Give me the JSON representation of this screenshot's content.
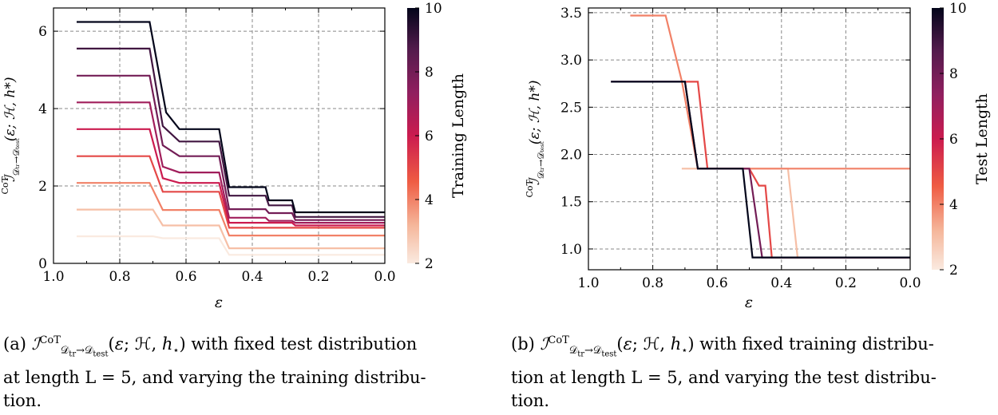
{
  "chart_data": [
    {
      "type": "line",
      "panel": "a",
      "xlabel": "ε",
      "ylabel": "I^CoT_{D_tr→D_test}(ε; H, h*)",
      "xlim": [
        1.0,
        0.0
      ],
      "ylim": [
        0,
        6.6
      ],
      "xticks": [
        "1.0",
        "0.8",
        "0.6",
        "0.4",
        "0.2",
        "0.0"
      ],
      "yticks": [
        "0",
        "2",
        "4",
        "6"
      ],
      "grid": true,
      "colorbar": {
        "label": "Training Length",
        "ticks": [
          "2",
          "4",
          "6",
          "8",
          "10"
        ],
        "range": [
          2,
          10
        ]
      },
      "series": [
        {
          "length": 2,
          "x": [
            0.93,
            0.7,
            0.67,
            0.5,
            0.47,
            0.0
          ],
          "y": [
            0.7,
            0.7,
            0.65,
            0.65,
            0.22,
            0.22
          ]
        },
        {
          "length": 3,
          "x": [
            0.93,
            0.7,
            0.67,
            0.5,
            0.47,
            0.0
          ],
          "y": [
            1.39,
            1.39,
            0.98,
            0.98,
            0.39,
            0.39
          ]
        },
        {
          "length": 4,
          "x": [
            0.93,
            0.71,
            0.67,
            0.6,
            0.5,
            0.47,
            0.28,
            0.27,
            0.0
          ],
          "y": [
            2.08,
            2.08,
            1.38,
            1.38,
            1.38,
            0.72,
            0.72,
            0.72,
            0.72
          ]
        },
        {
          "length": 5,
          "x": [
            0.93,
            0.71,
            0.67,
            0.5,
            0.47,
            0.28,
            0.27,
            0.0
          ],
          "y": [
            2.77,
            2.77,
            1.85,
            1.85,
            0.92,
            0.92,
            0.92,
            0.92
          ]
        },
        {
          "length": 6,
          "x": [
            0.93,
            0.71,
            0.67,
            0.62,
            0.5,
            0.47,
            0.28,
            0.27,
            0.0
          ],
          "y": [
            3.47,
            3.47,
            2.2,
            2.08,
            2.08,
            1.05,
            1.05,
            0.98,
            0.98
          ]
        },
        {
          "length": 7,
          "x": [
            0.93,
            0.71,
            0.67,
            0.62,
            0.5,
            0.47,
            0.36,
            0.35,
            0.28,
            0.27,
            0.0
          ],
          "y": [
            4.16,
            4.16,
            2.5,
            2.35,
            2.35,
            1.18,
            1.18,
            1.1,
            1.1,
            1.05,
            1.05
          ]
        },
        {
          "length": 8,
          "x": [
            0.93,
            0.71,
            0.67,
            0.62,
            0.5,
            0.47,
            0.36,
            0.35,
            0.28,
            0.27,
            0.0
          ],
          "y": [
            4.85,
            4.85,
            3.05,
            2.77,
            2.77,
            1.4,
            1.4,
            1.3,
            1.3,
            1.12,
            1.12
          ]
        },
        {
          "length": 9,
          "x": [
            0.93,
            0.71,
            0.67,
            0.62,
            0.5,
            0.47,
            0.36,
            0.35,
            0.28,
            0.27,
            0.0
          ],
          "y": [
            5.55,
            5.55,
            3.55,
            3.15,
            3.15,
            1.75,
            1.75,
            1.5,
            1.5,
            1.2,
            1.2
          ]
        },
        {
          "length": 10,
          "x": [
            0.93,
            0.71,
            0.66,
            0.62,
            0.5,
            0.47,
            0.36,
            0.35,
            0.28,
            0.27,
            0.0
          ],
          "y": [
            6.24,
            6.24,
            3.9,
            3.47,
            3.47,
            1.97,
            1.97,
            1.63,
            1.63,
            1.32,
            1.32
          ]
        }
      ]
    },
    {
      "type": "line",
      "panel": "b",
      "xlabel": "ε",
      "ylabel": "I^CoT_{D_tr→D_test}(ε; H, h*)",
      "xlim": [
        1.0,
        0.0
      ],
      "ylim": [
        0.78,
        3.55
      ],
      "xticks": [
        "1.0",
        "0.8",
        "0.6",
        "0.4",
        "0.2",
        "0.0"
      ],
      "yticks": [
        "1.0",
        "1.5",
        "2.0",
        "2.5",
        "3.0",
        "3.5"
      ],
      "grid": true,
      "colorbar": {
        "label": "Test Length",
        "ticks": [
          "2",
          "4",
          "6",
          "8",
          "10"
        ],
        "range": [
          2,
          10
        ]
      },
      "series": [
        {
          "length": 3,
          "x": [
            0.71,
            0.38,
            0.35,
            0.0
          ],
          "y": [
            1.85,
            1.85,
            0.91,
            0.91
          ]
        },
        {
          "length": 4,
          "x": [
            0.87,
            0.76,
            0.71,
            0.66,
            0.0
          ],
          "y": [
            3.47,
            3.47,
            2.78,
            1.85,
            1.85
          ]
        },
        {
          "length": 5,
          "x": [
            0.71,
            0.66,
            0.63,
            0.5,
            0.47,
            0.45,
            0.43,
            0.0
          ],
          "y": [
            2.77,
            2.77,
            1.85,
            1.85,
            1.67,
            1.67,
            0.91,
            0.91
          ]
        },
        {
          "length": 8,
          "x": [
            0.93,
            0.7,
            0.66,
            0.5,
            0.46,
            0.0
          ],
          "y": [
            2.77,
            2.77,
            1.85,
            1.85,
            0.91,
            0.91
          ]
        },
        {
          "length": 10,
          "x": [
            0.93,
            0.7,
            0.66,
            0.52,
            0.49,
            0.0
          ],
          "y": [
            2.77,
            2.77,
            1.85,
            1.85,
            0.91,
            0.91
          ]
        }
      ]
    }
  ],
  "captions": {
    "a": {
      "prefix": "(a) ",
      "suffix_line1": " with fixed test distribution",
      "line2": "at length L = 5, and varying the training distribu-",
      "line3": "tion."
    },
    "b": {
      "prefix": "(b) ",
      "suffix_line1": " with fixed training distribu-",
      "line2": "tion at length L = 5, and varying the test distribu-",
      "line3": "tion."
    }
  }
}
